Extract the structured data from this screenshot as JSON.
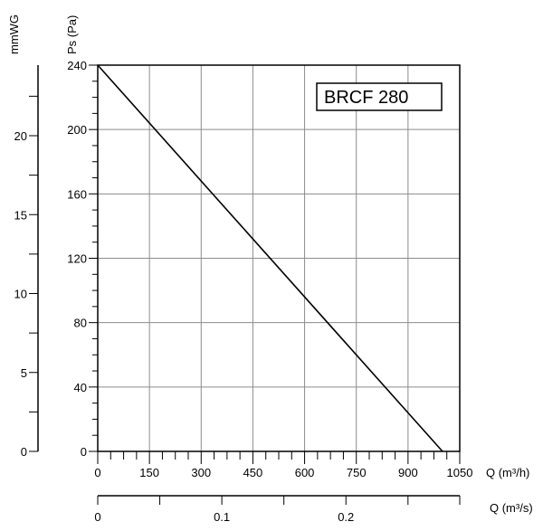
{
  "chart_data": {
    "type": "line",
    "title": "BRCF 280",
    "x_axis": {
      "label": "Q (m³/h)",
      "range": [
        0,
        1050
      ],
      "ticks": [
        0,
        150,
        300,
        450,
        600,
        750,
        900,
        1050
      ]
    },
    "x2_axis": {
      "label": "Q (m³/s)",
      "range": [
        0,
        0.2917
      ],
      "ticks": [
        0,
        0.1,
        0.2
      ]
    },
    "y_axis": {
      "label": "Ps (Pa)",
      "range": [
        0,
        240
      ],
      "ticks": [
        0,
        40,
        80,
        120,
        160,
        200,
        240
      ]
    },
    "y2_axis": {
      "label": "mmWG",
      "range": [
        0,
        24.47
      ],
      "ticks": [
        0,
        5,
        10,
        15,
        20
      ]
    },
    "grid": true,
    "series": [
      {
        "x": [
          0,
          1000
        ],
        "y": [
          240,
          0
        ],
        "color": "#000000"
      }
    ]
  }
}
